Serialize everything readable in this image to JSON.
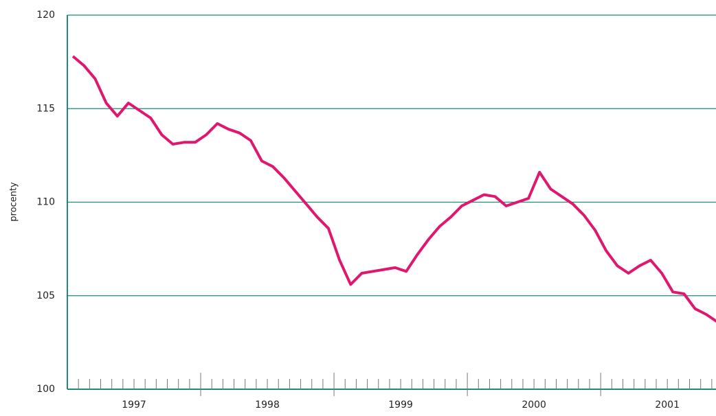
{
  "chart_data": {
    "type": "line",
    "ylabel": "procenty",
    "categories": [
      null,
      null,
      null,
      null,
      null,
      "1997",
      null,
      null,
      null,
      null,
      null,
      null,
      null,
      null,
      null,
      null,
      null,
      "1998",
      null,
      null,
      null,
      null,
      null,
      null,
      null,
      null,
      null,
      null,
      null,
      "1999",
      null,
      null,
      null,
      null,
      null,
      null,
      null,
      null,
      null,
      null,
      null,
      "2000",
      null,
      null,
      null,
      null,
      null,
      null,
      null,
      null,
      null,
      null,
      null,
      "2001",
      null,
      null,
      null,
      null,
      null
    ],
    "series": [
      {
        "color": "#e0176f",
        "values": [
          117.8,
          117.3,
          116.6,
          115.3,
          114.6,
          115.3,
          114.9,
          114.5,
          113.6,
          113.1,
          113.2,
          113.2,
          113.6,
          114.2,
          113.9,
          113.7,
          113.3,
          112.2,
          111.9,
          111.3,
          110.6,
          109.9,
          109.2,
          108.6,
          106.9,
          105.6,
          106.2,
          106.3,
          106.4,
          106.5,
          106.3,
          107.2,
          108.0,
          108.7,
          109.2,
          109.8,
          110.1,
          110.4,
          110.3,
          109.8,
          110.0,
          110.2,
          111.6,
          110.7,
          110.3,
          109.9,
          109.3,
          108.5,
          107.4,
          106.6,
          106.2,
          106.6,
          106.9,
          106.2,
          105.2,
          105.1,
          104.3,
          104.0,
          103.6
        ]
      }
    ],
    "ylim": [
      100,
      120
    ],
    "yticks": [
      100,
      105,
      110,
      115,
      120
    ],
    "grid": true,
    "grid_color": "#1f8a78"
  }
}
